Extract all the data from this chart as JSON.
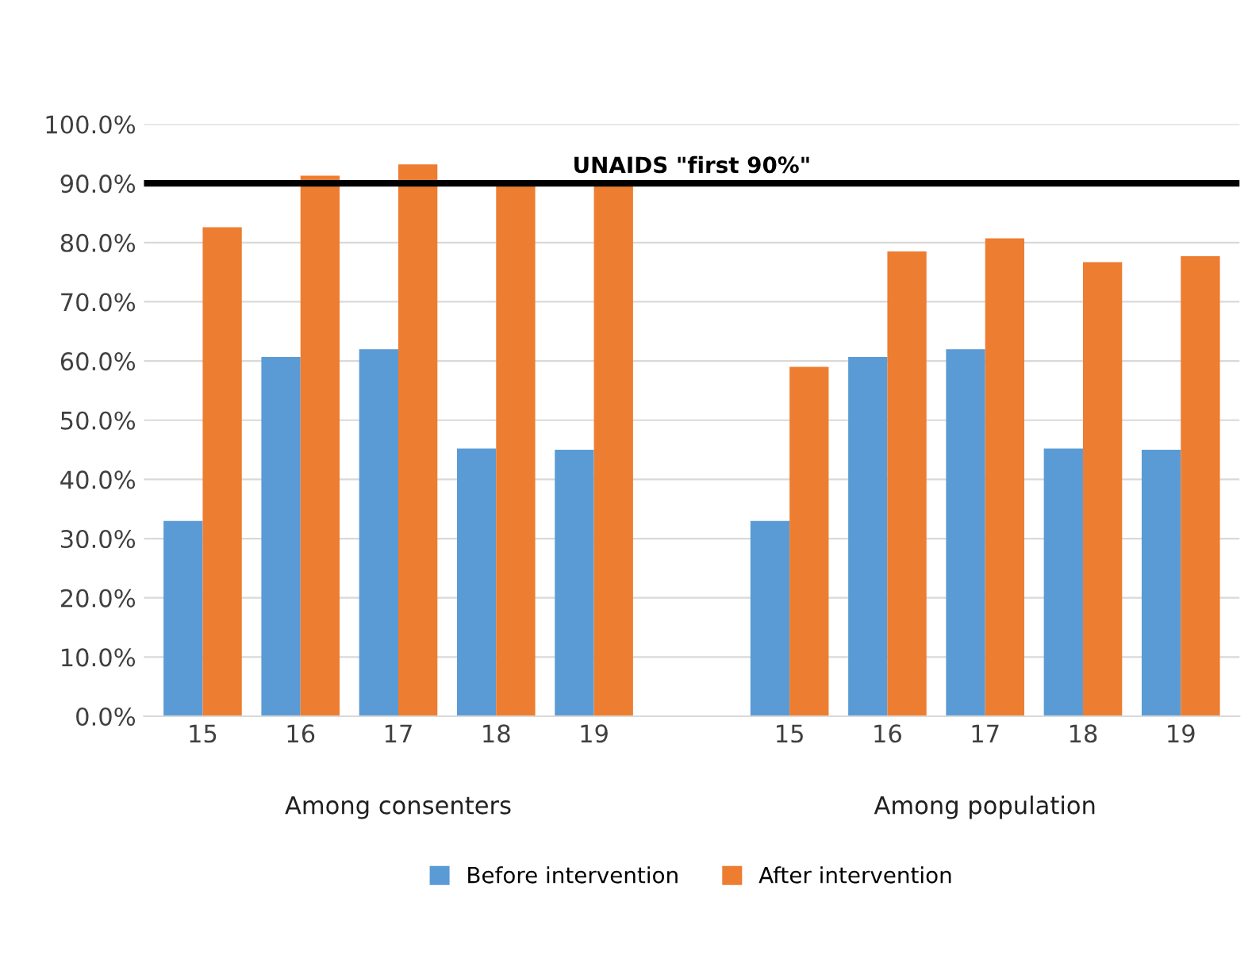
{
  "chart_data": {
    "type": "bar",
    "categories": [
      "15",
      "16",
      "17",
      "18",
      "19",
      null,
      "15",
      "16",
      "17",
      "18",
      "19"
    ],
    "series": [
      {
        "name": "Before intervention",
        "color": "#5b9bd5",
        "values": [
          33.0,
          60.7,
          62.0,
          45.2,
          45.0,
          null,
          33.0,
          60.7,
          62.0,
          45.2,
          45.0
        ]
      },
      {
        "name": "After intervention",
        "color": "#ed7d31",
        "values": [
          82.6,
          91.3,
          93.2,
          90.0,
          90.0,
          null,
          59.0,
          78.5,
          80.7,
          76.7,
          77.7
        ]
      }
    ],
    "ylim": [
      0,
      100
    ],
    "yticks": [
      {
        "value": 0,
        "label": "0.0%"
      },
      {
        "value": 10,
        "label": "10.0%"
      },
      {
        "value": 20,
        "label": "20.0%"
      },
      {
        "value": 30,
        "label": "30.0%"
      },
      {
        "value": 40,
        "label": "40.0%"
      },
      {
        "value": 50,
        "label": "50.0%"
      },
      {
        "value": 60,
        "label": "60.0%"
      },
      {
        "value": 70,
        "label": "70.0%"
      },
      {
        "value": 80,
        "label": "80.0%"
      },
      {
        "value": 90,
        "label": "90.0%"
      },
      {
        "value": 100,
        "label": "100.0%"
      }
    ],
    "ref_lines": [
      {
        "axis": "y",
        "value": 90,
        "label": "UNAIDS \"first 90%\"",
        "color": "#000000"
      }
    ],
    "annotations": [
      "Among consenters",
      "Among population"
    ],
    "grid": "y",
    "legend": "bottom"
  }
}
